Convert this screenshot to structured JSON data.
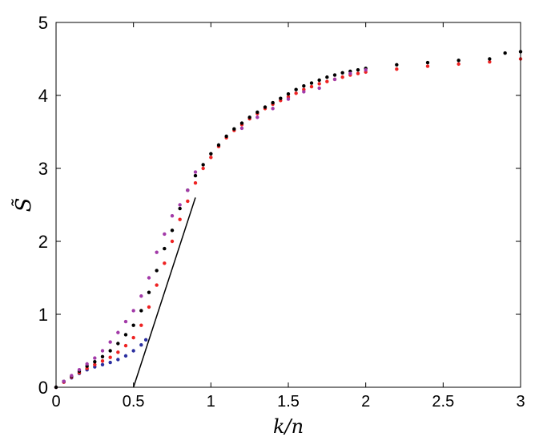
{
  "chart_data": {
    "type": "scatter",
    "title": "",
    "xlabel": "k/n",
    "ylabel": "S̃",
    "xlim": [
      0,
      3
    ],
    "ylim": [
      0,
      5
    ],
    "xticks": [
      "0",
      "0.5",
      "1",
      "1.5",
      "2",
      "2.5",
      "3"
    ],
    "yticks": [
      "0",
      "1",
      "2",
      "3",
      "4",
      "5"
    ],
    "grid": false,
    "legend": "none",
    "series": [
      {
        "color": "#2b2fa0",
        "x": [
          0.0,
          0.05,
          0.1,
          0.15,
          0.2,
          0.25,
          0.3,
          0.35,
          0.4,
          0.45,
          0.5,
          0.55,
          0.58
        ],
        "y": [
          0.0,
          0.07,
          0.13,
          0.19,
          0.24,
          0.28,
          0.31,
          0.34,
          0.38,
          0.43,
          0.5,
          0.58,
          0.65
        ]
      },
      {
        "color": "#ee2222",
        "x": [
          0.0,
          0.05,
          0.1,
          0.15,
          0.2,
          0.25,
          0.3,
          0.35,
          0.4,
          0.45,
          0.5,
          0.55,
          0.6,
          0.65,
          0.7,
          0.75,
          0.8,
          0.85,
          0.9,
          0.95,
          1.0,
          1.05,
          1.1,
          1.15,
          1.2,
          1.25,
          1.3,
          1.35,
          1.4,
          1.45,
          1.5,
          1.55,
          1.6,
          1.65,
          1.7,
          1.75,
          1.8,
          1.85,
          1.9,
          1.95,
          2.0,
          2.2,
          2.4,
          2.6,
          2.8,
          3.0
        ],
        "y": [
          0.0,
          0.07,
          0.14,
          0.2,
          0.26,
          0.31,
          0.36,
          0.41,
          0.48,
          0.57,
          0.68,
          0.85,
          1.1,
          1.4,
          1.7,
          2.0,
          2.3,
          2.55,
          2.8,
          3.0,
          3.15,
          3.3,
          3.42,
          3.52,
          3.6,
          3.68,
          3.75,
          3.82,
          3.88,
          3.93,
          3.98,
          4.03,
          4.08,
          4.12,
          4.16,
          4.19,
          4.22,
          4.25,
          4.28,
          4.3,
          4.32,
          4.36,
          4.4,
          4.43,
          4.46,
          4.5
        ]
      },
      {
        "color": "#000000",
        "x": [
          0.0,
          0.05,
          0.1,
          0.15,
          0.2,
          0.25,
          0.3,
          0.35,
          0.4,
          0.45,
          0.5,
          0.55,
          0.6,
          0.65,
          0.7,
          0.75,
          0.8,
          0.85,
          0.9,
          0.95,
          1.0,
          1.05,
          1.1,
          1.15,
          1.2,
          1.25,
          1.3,
          1.35,
          1.4,
          1.45,
          1.5,
          1.55,
          1.6,
          1.65,
          1.7,
          1.75,
          1.8,
          1.85,
          1.9,
          1.95,
          2.0,
          2.2,
          2.4,
          2.6,
          2.8,
          2.9,
          3.0
        ],
        "y": [
          0.0,
          0.08,
          0.15,
          0.22,
          0.29,
          0.35,
          0.42,
          0.5,
          0.6,
          0.72,
          0.85,
          1.05,
          1.3,
          1.6,
          1.9,
          2.15,
          2.45,
          2.7,
          2.9,
          3.05,
          3.2,
          3.32,
          3.44,
          3.54,
          3.62,
          3.7,
          3.77,
          3.84,
          3.9,
          3.96,
          4.02,
          4.08,
          4.13,
          4.17,
          4.21,
          4.25,
          4.28,
          4.31,
          4.33,
          4.35,
          4.37,
          4.42,
          4.45,
          4.48,
          4.5,
          4.58,
          4.6
        ]
      },
      {
        "color": "#a23aa8",
        "x": [
          0.05,
          0.1,
          0.15,
          0.2,
          0.25,
          0.3,
          0.35,
          0.4,
          0.45,
          0.5,
          0.55,
          0.6,
          0.65,
          0.7,
          0.75,
          0.8,
          0.85,
          0.9,
          1.2,
          1.3,
          1.4,
          1.5,
          1.6,
          1.7,
          1.8,
          1.9,
          2.0
        ],
        "y": [
          0.08,
          0.16,
          0.24,
          0.32,
          0.4,
          0.5,
          0.62,
          0.75,
          0.9,
          1.05,
          1.25,
          1.5,
          1.85,
          2.1,
          2.35,
          2.5,
          2.7,
          2.95,
          3.55,
          3.7,
          3.82,
          3.95,
          4.05,
          4.1,
          4.22,
          4.3,
          4.35
        ]
      }
    ],
    "reference_line": {
      "color": "#000000",
      "x": [
        0.5,
        0.9
      ],
      "y": [
        0.0,
        2.6
      ]
    }
  }
}
